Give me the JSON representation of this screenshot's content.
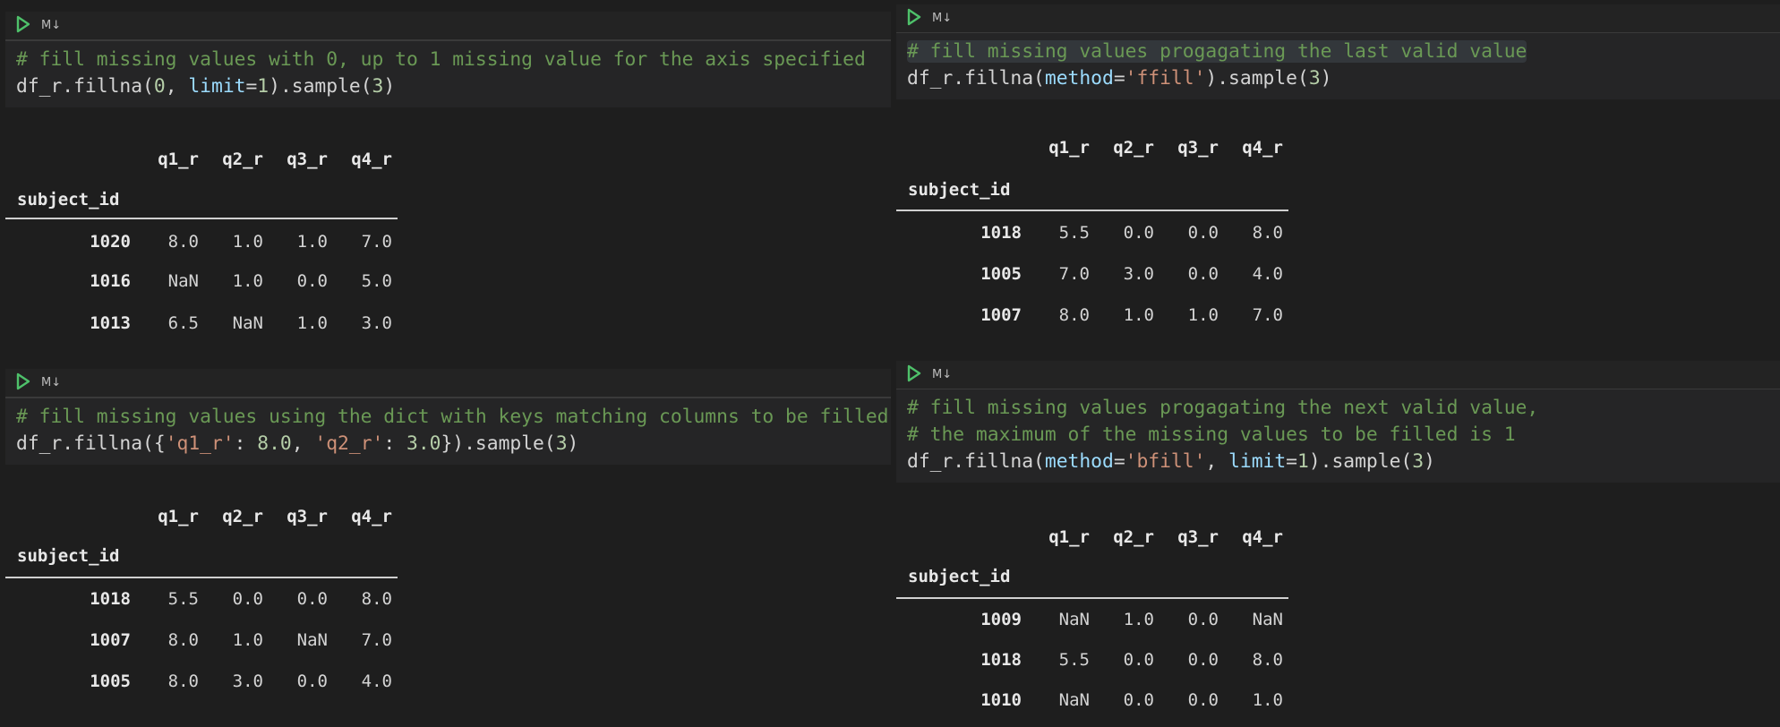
{
  "colors": {
    "background": "#1e1e1e",
    "comment": "#6a9955",
    "param": "#9cdcfe",
    "string": "#ce9178",
    "number": "#b5cea8",
    "run_icon": "#4ec16a"
  },
  "toolbar_icon": "run-cell-icon",
  "md_label": "M↓",
  "index_name": "subject_id",
  "columns": [
    "q1_r",
    "q2_r",
    "q3_r",
    "q4_r"
  ],
  "cells": [
    {
      "code": [
        [
          {
            "t": "# fill missing values with 0, up to 1 missing value for the axis specified",
            "c": "c"
          }
        ],
        [
          {
            "t": "df_r.fillna(",
            "c": "p"
          },
          {
            "t": "0",
            "c": "n"
          },
          {
            "t": ", ",
            "c": "p"
          },
          {
            "t": "limit",
            "c": "k"
          },
          {
            "t": "=",
            "c": "p"
          },
          {
            "t": "1",
            "c": "n"
          },
          {
            "t": ").sample(",
            "c": "p"
          },
          {
            "t": "3",
            "c": "n"
          },
          {
            "t": ")",
            "c": "p"
          }
        ]
      ],
      "rows": [
        [
          "1020",
          "8.0",
          "1.0",
          "1.0",
          "7.0"
        ],
        [
          "1016",
          "NaN",
          "1.0",
          "0.0",
          "5.0"
        ],
        [
          "1013",
          "6.5",
          "NaN",
          "1.0",
          "3.0"
        ]
      ]
    },
    {
      "code": [
        [
          {
            "t": "# fill missing values using the dict with keys matching columns to be filled",
            "c": "c"
          }
        ],
        [
          {
            "t": "df_r.fillna({",
            "c": "p"
          },
          {
            "t": "'q1_r'",
            "c": "s"
          },
          {
            "t": ": ",
            "c": "p"
          },
          {
            "t": "8.0",
            "c": "n"
          },
          {
            "t": ", ",
            "c": "p"
          },
          {
            "t": "'q2_r'",
            "c": "s"
          },
          {
            "t": ": ",
            "c": "p"
          },
          {
            "t": "3.0",
            "c": "n"
          },
          {
            "t": "}).sample(",
            "c": "p"
          },
          {
            "t": "3",
            "c": "n"
          },
          {
            "t": ")",
            "c": "p"
          }
        ]
      ],
      "rows": [
        [
          "1018",
          "5.5",
          "0.0",
          "0.0",
          "8.0"
        ],
        [
          "1007",
          "8.0",
          "1.0",
          "NaN",
          "7.0"
        ],
        [
          "1005",
          "8.0",
          "3.0",
          "0.0",
          "4.0"
        ]
      ]
    },
    {
      "code": [
        [
          {
            "t": "# fill missing values progagating the last valid value",
            "c": "c"
          }
        ],
        [
          {
            "t": "df_r.fillna(",
            "c": "p"
          },
          {
            "t": "method",
            "c": "k"
          },
          {
            "t": "=",
            "c": "p"
          },
          {
            "t": "'ffill'",
            "c": "s"
          },
          {
            "t": ").sample(",
            "c": "p"
          },
          {
            "t": "3",
            "c": "n"
          },
          {
            "t": ")",
            "c": "p"
          }
        ]
      ],
      "rows": [
        [
          "1018",
          "5.5",
          "0.0",
          "0.0",
          "8.0"
        ],
        [
          "1005",
          "7.0",
          "3.0",
          "0.0",
          "4.0"
        ],
        [
          "1007",
          "8.0",
          "1.0",
          "1.0",
          "7.0"
        ]
      ]
    },
    {
      "code": [
        [
          {
            "t": "# fill missing values progagating the next valid value,",
            "c": "c"
          }
        ],
        [
          {
            "t": "# the maximum of the missing values to be filled is 1",
            "c": "c"
          }
        ],
        [
          {
            "t": "df_r.fillna(",
            "c": "p"
          },
          {
            "t": "method",
            "c": "k"
          },
          {
            "t": "=",
            "c": "p"
          },
          {
            "t": "'bfill'",
            "c": "s"
          },
          {
            "t": ", ",
            "c": "p"
          },
          {
            "t": "limit",
            "c": "k"
          },
          {
            "t": "=",
            "c": "p"
          },
          {
            "t": "1",
            "c": "n"
          },
          {
            "t": ").sample(",
            "c": "p"
          },
          {
            "t": "3",
            "c": "n"
          },
          {
            "t": ")",
            "c": "p"
          }
        ]
      ],
      "rows": [
        [
          "1009",
          "NaN",
          "1.0",
          "0.0",
          "NaN"
        ],
        [
          "1018",
          "5.5",
          "0.0",
          "0.0",
          "8.0"
        ],
        [
          "1010",
          "NaN",
          "0.0",
          "0.0",
          "1.0"
        ]
      ]
    }
  ]
}
